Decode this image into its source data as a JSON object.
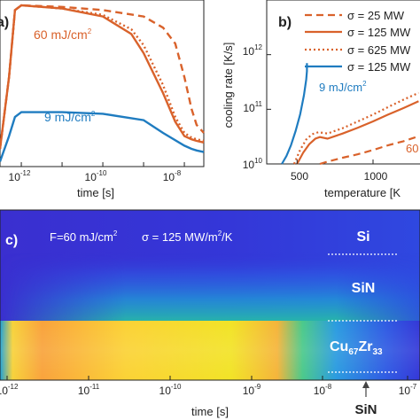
{
  "colors": {
    "orange": "#d9622b",
    "blue": "#1f7cc0",
    "axis": "#222222"
  },
  "chart_data": [
    {
      "panel": "a)",
      "type": "line",
      "xlabel": "time [s]",
      "x_scale": "log",
      "xlim": [
        3e-13,
        3e-08
      ],
      "xtick_labels": [
        "10^-12",
        "10^-10",
        "10^-8"
      ],
      "annotations": [
        {
          "text": "60 mJ/cm^2",
          "color": "#d9622b"
        },
        {
          "text": "9 mJ/cm^2",
          "color": "#1f7cc0"
        }
      ],
      "ylim": [
        0,
        1
      ],
      "series": [
        {
          "style": "dashed",
          "color": "#d9622b",
          "x": [
            3e-13,
            5e-13,
            7e-13,
            1e-12,
            1e-11,
            1e-10,
            1e-09,
            3e-09,
            6e-09,
            1e-08,
            1.5e-08,
            2e-08,
            3e-08
          ],
          "y": [
            0.1,
            0.55,
            0.97,
            1.0,
            0.99,
            0.97,
            0.93,
            0.86,
            0.76,
            0.55,
            0.35,
            0.25,
            0.2
          ]
        },
        {
          "style": "dotted",
          "color": "#d9622b",
          "x": [
            3e-13,
            5e-13,
            7e-13,
            1e-12,
            1e-11,
            1e-10,
            5e-10,
            1e-09,
            3e-09,
            6e-09,
            1e-08,
            1.5e-08,
            2e-08,
            3e-08
          ],
          "y": [
            0.1,
            0.55,
            0.97,
            1.0,
            0.98,
            0.94,
            0.85,
            0.75,
            0.5,
            0.3,
            0.2,
            0.17,
            0.16,
            0.15
          ]
        },
        {
          "style": "solid",
          "color": "#d9622b",
          "x": [
            3e-13,
            5e-13,
            7e-13,
            1e-12,
            1e-11,
            1e-10,
            5e-10,
            1e-09,
            3e-09,
            6e-09,
            1e-08,
            1.5e-08,
            2e-08,
            3e-08
          ],
          "y": [
            0.1,
            0.55,
            0.97,
            1.0,
            0.98,
            0.93,
            0.82,
            0.7,
            0.45,
            0.27,
            0.18,
            0.16,
            0.15,
            0.14
          ]
        },
        {
          "style": "solid",
          "color": "#1f7cc0",
          "x": [
            3e-13,
            5e-13,
            7e-13,
            1e-12,
            1e-11,
            1e-10,
            1e-09,
            3e-09,
            1e-08,
            1.5e-08,
            2e-08,
            3e-08
          ],
          "y": [
            0.02,
            0.18,
            0.3,
            0.33,
            0.33,
            0.32,
            0.28,
            0.2,
            0.12,
            0.1,
            0.09,
            0.08
          ]
        }
      ]
    },
    {
      "panel": "b)",
      "type": "line",
      "xlabel": "temperature [K",
      "ylabel": "cooling rate [K/s]",
      "y_scale": "log",
      "xlim": [
        300,
        1350
      ],
      "ylim": [
        10000000000.0,
        10000000000000.0
      ],
      "xtick_labels": [
        "500",
        "1000"
      ],
      "ytick_labels": [
        "10^10",
        "10^11",
        "10^12"
      ],
      "legend": {
        "placement": "top-right",
        "entries": [
          {
            "text": "σ = 25 MW",
            "style": "dashed",
            "color": "#d9622b"
          },
          {
            "text": "σ = 125 MW",
            "style": "solid",
            "color": "#d9622b"
          },
          {
            "text": "σ = 625 MW",
            "style": "dotted",
            "color": "#d9622b"
          },
          {
            "text": "σ = 125 MW",
            "style": "solid",
            "color": "#1f7cc0"
          }
        ]
      },
      "annotations": [
        {
          "text": "9 mJ/cm^2",
          "color": "#1f7cc0"
        },
        {
          "text": "60",
          "color": "#d9622b"
        }
      ],
      "series": [
        {
          "style": "dotted",
          "color": "#d9622b",
          "x": [
            480,
            520,
            560,
            600,
            640,
            700,
            800,
            900,
            1000,
            1100,
            1200,
            1300
          ],
          "y": [
            10000000000.0,
            18000000000.0,
            28000000000.0,
            35000000000.0,
            38000000000.0,
            36000000000.0,
            45000000000.0,
            60000000000.0,
            80000000000.0,
            110000000000.0,
            150000000000.0,
            200000000000.0
          ]
        },
        {
          "style": "solid",
          "color": "#d9622b",
          "x": [
            500,
            540,
            580,
            620,
            650,
            700,
            800,
            900,
            1000,
            1100,
            1200,
            1300
          ],
          "y": [
            10000000000.0,
            16000000000.0,
            23000000000.0,
            29000000000.0,
            31000000000.0,
            29000000000.0,
            36000000000.0,
            46000000000.0,
            60000000000.0,
            80000000000.0,
            105000000000.0,
            140000000000.0
          ]
        },
        {
          "style": "dashed",
          "color": "#d9622b",
          "x": [
            650,
            700,
            800,
            900,
            1000,
            1100,
            1200,
            1300
          ],
          "y": [
            10000000000.0,
            11000000000.0,
            13000000000.0,
            15000000000.0,
            18000000000.0,
            22000000000.0,
            26000000000.0,
            32000000000.0
          ]
        },
        {
          "style": "solid",
          "color": "#1f7cc0",
          "x": [
            400,
            430,
            460,
            490,
            520,
            545,
            560,
            565,
            565
          ],
          "y": [
            10000000000.0,
            14000000000.0,
            22000000000.0,
            40000000000.0,
            80000000000.0,
            180000000000.0,
            350000000000.0,
            500000000000.0,
            700000000000.0
          ]
        }
      ]
    },
    {
      "panel": "c)",
      "type": "heatmap",
      "xlabel": "time [s]",
      "x_scale": "log",
      "xlim": [
        1e-12,
        1e-07
      ],
      "xtick_labels": [
        "10^-12",
        "10^-11",
        "10^-10",
        "10^-9",
        "10^-8",
        "10^-7"
      ],
      "title": "F=60 mJ/cm^2   σ = 125 MW/m^2/K",
      "layers": [
        "Si",
        "SiN",
        "Cu67Zr33"
      ],
      "arrow_label": "SiN",
      "colormap": "parula"
    }
  ],
  "text": {
    "panel_a": "a)",
    "panel_b": "b)",
    "panel_c": "c)",
    "a_time_label": "time [s]",
    "a_ann_60_main": "60 mJ/cm",
    "a_ann_60_sup": "2",
    "a_ann_9_main": "9 mJ/cm",
    "a_ann_9_sup": "2",
    "a_xt1_base": "10",
    "a_xt1_exp": "-12",
    "a_xt2_base": "10",
    "a_xt2_exp": "-10",
    "a_xt3_base": "10",
    "a_xt3_exp": "-8",
    "b_ylabel": "cooling rate [K/s]",
    "b_xlabel": "temperature [K",
    "b_yt1_base": "10",
    "b_yt1_exp": "10",
    "b_yt2_base": "10",
    "b_yt2_exp": "11",
    "b_yt3_base": "10",
    "b_yt3_exp": "12",
    "b_xt1": "500",
    "b_xt2": "1000",
    "b_leg1": "σ = 25 MW",
    "b_leg2": "σ = 125 MW",
    "b_leg3": "σ = 625 MW",
    "b_leg4": "σ = 125 MW",
    "b_ann_9_main": "9 mJ/cm",
    "b_ann_9_sup": "2",
    "b_ann_60": "60",
    "c_f_main": "F=60 mJ/cm",
    "c_f_sup": "2",
    "c_sigma_main": "σ = 125 MW/m",
    "c_sigma_sup": "2",
    "c_sigma_tail": "/K",
    "c_layer_si": "Si",
    "c_layer_sin": "SiN",
    "c_layer_cu": "Cu",
    "c_layer_cu_sub": "67",
    "c_layer_zr": "Zr",
    "c_layer_zr_sub": "33",
    "c_arrow_label": "SiN",
    "c_time_label": "time [s]",
    "c_xt1_base": "10",
    "c_xt1_exp": "-12",
    "c_xt2_base": "10",
    "c_xt2_exp": "-11",
    "c_xt3_base": "10",
    "c_xt3_exp": "-10",
    "c_xt4_base": "10",
    "c_xt4_exp": "-9",
    "c_xt5_base": "10",
    "c_xt5_exp": "-8",
    "c_xt6_base": "10",
    "c_xt6_exp": "-7"
  }
}
